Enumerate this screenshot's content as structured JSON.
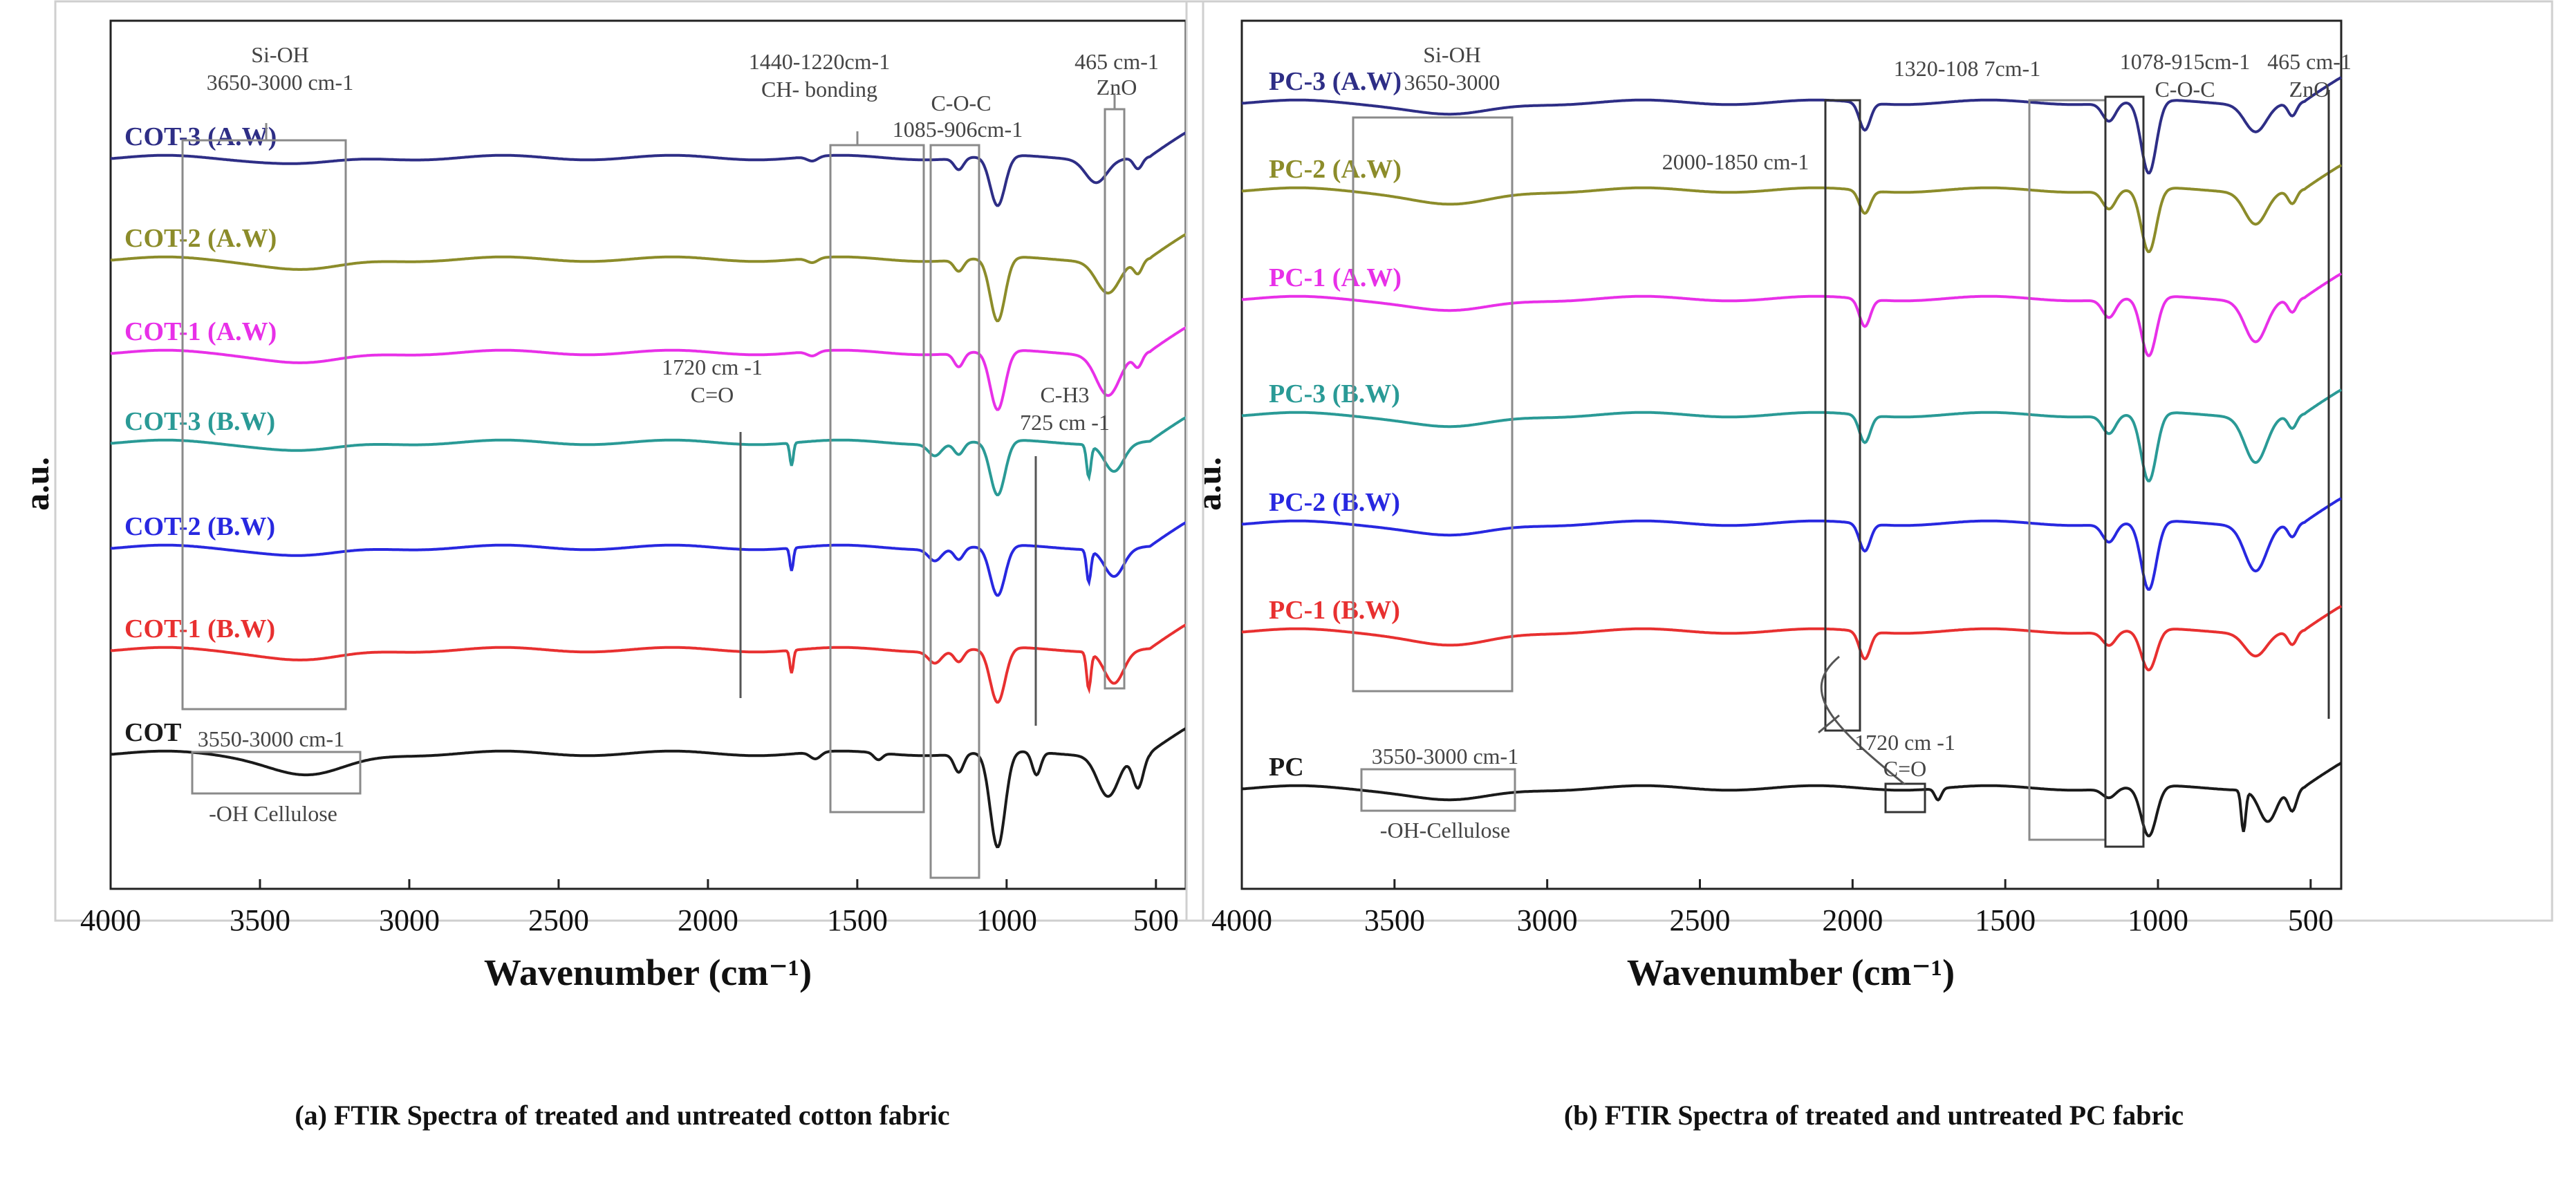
{
  "figure": {
    "captions": [
      "(a) FTIR Spectra of treated and untreated cotton fabric",
      "(b) FTIR Spectra of treated and untreated PC fabric"
    ]
  },
  "chart_data": [
    {
      "type": "line",
      "panel": "a",
      "title": "",
      "xlabel": "Wavenumber (cm⁻¹)",
      "ylabel": "a.u.",
      "xlim": [
        4000,
        400
      ],
      "x_ticks": [
        4000,
        3500,
        3000,
        2500,
        2000,
        1500,
        1000,
        500
      ],
      "x_tick_labels": [
        "4000",
        "3500",
        "3000",
        "2500",
        "2000",
        "1500",
        "1000",
        "500"
      ],
      "series": [
        {
          "name": "COT-3 (A.W)",
          "color": "#2e2e86",
          "dips": [
            [
              3330,
              0.03,
              180
            ],
            [
              1650,
              0.02,
              25
            ],
            [
              1160,
              0.05,
              22
            ],
            [
              1030,
              0.22,
              35
            ],
            [
              700,
              0.1,
              50
            ],
            [
              560,
              0.05,
              20
            ]
          ]
        },
        {
          "name": "COT-2 (A.W)",
          "color": "#8c8c2a",
          "dips": [
            [
              3330,
              0.05,
              180
            ],
            [
              1650,
              0.02,
              25
            ],
            [
              1160,
              0.05,
              22
            ],
            [
              1030,
              0.28,
              35
            ],
            [
              660,
              0.14,
              55
            ],
            [
              560,
              0.06,
              20
            ]
          ]
        },
        {
          "name": "COT-1 (A.W)",
          "color": "#e830e8",
          "dips": [
            [
              3330,
              0.05,
              180
            ],
            [
              1650,
              0.02,
              25
            ],
            [
              1160,
              0.06,
              22
            ],
            [
              1030,
              0.26,
              35
            ],
            [
              660,
              0.18,
              55
            ],
            [
              560,
              0.06,
              20
            ]
          ]
        },
        {
          "name": "COT-3 (B.W)",
          "color": "#2a9a96",
          "dips": [
            [
              3330,
              0.04,
              180
            ],
            [
              1720,
              0.1,
              8
            ],
            [
              1240,
              0.05,
              30
            ],
            [
              1160,
              0.05,
              22
            ],
            [
              1030,
              0.24,
              35
            ],
            [
              725,
              0.14,
              10
            ],
            [
              640,
              0.12,
              45
            ]
          ]
        },
        {
          "name": "COT-2 (B.W)",
          "color": "#2828e0",
          "dips": [
            [
              3330,
              0.04,
              180
            ],
            [
              1720,
              0.1,
              8
            ],
            [
              1240,
              0.05,
              30
            ],
            [
              1160,
              0.05,
              22
            ],
            [
              1030,
              0.22,
              35
            ],
            [
              725,
              0.14,
              10
            ],
            [
              640,
              0.12,
              45
            ]
          ]
        },
        {
          "name": "COT-1 (B.W)",
          "color": "#e83030",
          "dips": [
            [
              3330,
              0.05,
              180
            ],
            [
              1720,
              0.1,
              8
            ],
            [
              1240,
              0.05,
              30
            ],
            [
              1160,
              0.05,
              22
            ],
            [
              1030,
              0.24,
              35
            ],
            [
              725,
              0.16,
              10
            ],
            [
              640,
              0.14,
              45
            ]
          ]
        },
        {
          "name": "COT",
          "color": "#1a1a1a",
          "dips": [
            [
              3330,
              0.1,
              180
            ],
            [
              1640,
              0.03,
              25
            ],
            [
              1430,
              0.03,
              20
            ],
            [
              1160,
              0.08,
              22
            ],
            [
              1030,
              0.42,
              35
            ],
            [
              900,
              0.1,
              20
            ],
            [
              660,
              0.18,
              50
            ],
            [
              560,
              0.15,
              25
            ]
          ]
        }
      ],
      "annotations": [
        {
          "label": "Si-OH",
          "sub": "3650-3000 cm-1"
        },
        {
          "label": "1440-1220cm-1",
          "sub": "CH- bonding"
        },
        {
          "label": "C-O-C",
          "sub": "1085-906cm-1"
        },
        {
          "label": "465 cm-1",
          "sub": "ZnO"
        },
        {
          "label": "1720 cm -1",
          "sub": "C=O"
        },
        {
          "label": "C-H3",
          "sub": "725 cm -1"
        },
        {
          "label": "3550-3000 cm-1",
          "sub": "-OH Cellulose"
        }
      ]
    },
    {
      "type": "line",
      "panel": "b",
      "title": "",
      "xlabel": "Wavenumber (cm⁻¹)",
      "ylabel": "a.u.",
      "xlim": [
        4000,
        400
      ],
      "x_ticks": [
        4000,
        3500,
        3000,
        2500,
        2000,
        1500,
        1000,
        500
      ],
      "x_tick_labels": [
        "4000",
        "3500",
        "3000",
        "2500",
        "2000",
        "1500",
        "1000",
        "500"
      ],
      "series": [
        {
          "name": "PC-3 (A.W)",
          "color": "#2e2e86",
          "dips": [
            [
              3300,
              0.06,
              180
            ],
            [
              1960,
              0.12,
              25
            ],
            [
              1160,
              0.08,
              30
            ],
            [
              1030,
              0.32,
              35
            ],
            [
              680,
              0.12,
              50
            ],
            [
              560,
              0.06,
              20
            ]
          ]
        },
        {
          "name": "PC-2 (A.W)",
          "color": "#8c8c2a",
          "dips": [
            [
              3300,
              0.07,
              180
            ],
            [
              1960,
              0.1,
              25
            ],
            [
              1160,
              0.08,
              30
            ],
            [
              1030,
              0.28,
              35
            ],
            [
              680,
              0.14,
              50
            ],
            [
              560,
              0.06,
              20
            ]
          ]
        },
        {
          "name": "PC-1 (A.W)",
          "color": "#e830e8",
          "dips": [
            [
              3300,
              0.06,
              180
            ],
            [
              1960,
              0.12,
              25
            ],
            [
              1160,
              0.08,
              30
            ],
            [
              1030,
              0.26,
              35
            ],
            [
              680,
              0.18,
              50
            ],
            [
              560,
              0.06,
              20
            ]
          ]
        },
        {
          "name": "PC-3 (B.W)",
          "color": "#2a9a96",
          "dips": [
            [
              3300,
              0.06,
              180
            ],
            [
              1960,
              0.12,
              25
            ],
            [
              1160,
              0.08,
              30
            ],
            [
              1030,
              0.3,
              35
            ],
            [
              680,
              0.2,
              50
            ],
            [
              560,
              0.06,
              20
            ]
          ]
        },
        {
          "name": "PC-2 (B.W)",
          "color": "#2828e0",
          "dips": [
            [
              3300,
              0.06,
              180
            ],
            [
              1960,
              0.12,
              25
            ],
            [
              1160,
              0.08,
              30
            ],
            [
              1030,
              0.3,
              35
            ],
            [
              680,
              0.2,
              50
            ],
            [
              560,
              0.06,
              20
            ]
          ]
        },
        {
          "name": "PC-1 (B.W)",
          "color": "#e83030",
          "dips": [
            [
              3300,
              0.07,
              180
            ],
            [
              1960,
              0.12,
              25
            ],
            [
              1160,
              0.06,
              30
            ],
            [
              1030,
              0.18,
              35
            ],
            [
              680,
              0.1,
              50
            ],
            [
              560,
              0.06,
              20
            ]
          ]
        },
        {
          "name": "PC",
          "color": "#1a1a1a",
          "dips": [
            [
              3300,
              0.06,
              180
            ],
            [
              1720,
              0.05,
              15
            ],
            [
              1160,
              0.04,
              30
            ],
            [
              1030,
              0.22,
              35
            ],
            [
              720,
              0.18,
              10
            ],
            [
              640,
              0.14,
              40
            ],
            [
              560,
              0.1,
              20
            ]
          ]
        }
      ],
      "annotations": [
        {
          "label": "Si-OH",
          "sub": "3650-3000"
        },
        {
          "label": "1320-108 7cm-1",
          "sub": ""
        },
        {
          "label": "1078-915cm-1",
          "sub": "C-O-C"
        },
        {
          "label": "465 cm-1",
          "sub": "ZnO"
        },
        {
          "label": "2000-1850 cm-1",
          "sub": ""
        },
        {
          "label": "1720 cm -1",
          "sub": "C=O"
        },
        {
          "label": "3550-3000 cm-1",
          "sub": "-OH-Cellulose"
        }
      ]
    }
  ]
}
